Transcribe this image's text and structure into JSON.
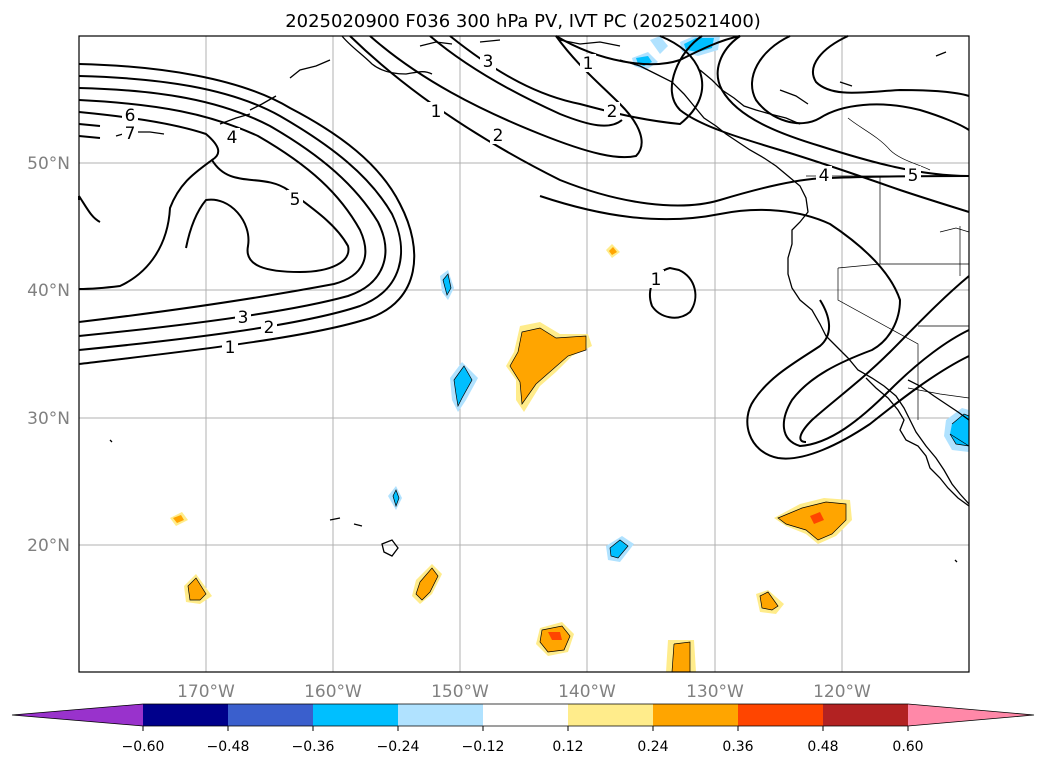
{
  "title": "2025020900 F036 300 hPa PV, IVT PC (2025021400)",
  "map": {
    "lat_ticks": [
      "50°N",
      "40°N",
      "30°N",
      "20°N"
    ],
    "lon_ticks": [
      "170°W",
      "160°W",
      "150°W",
      "140°W",
      "130°W",
      "120°W"
    ]
  },
  "contour_labels": [
    "1",
    "2",
    "3",
    "4",
    "5",
    "6",
    "7"
  ],
  "colorbar": {
    "ticks": [
      "−0.60",
      "−0.48",
      "−0.36",
      "−0.24",
      "−0.12",
      "0.12",
      "0.24",
      "0.36",
      "0.48",
      "0.60"
    ],
    "colors": [
      "#9932cc",
      "#00008b",
      "#3a5fcd",
      "#00bfff",
      "#b0e2ff",
      "#ffffff",
      "#ffec8b",
      "#ffa500",
      "#ff4500",
      "#b22222",
      "#ff88a8"
    ]
  }
}
